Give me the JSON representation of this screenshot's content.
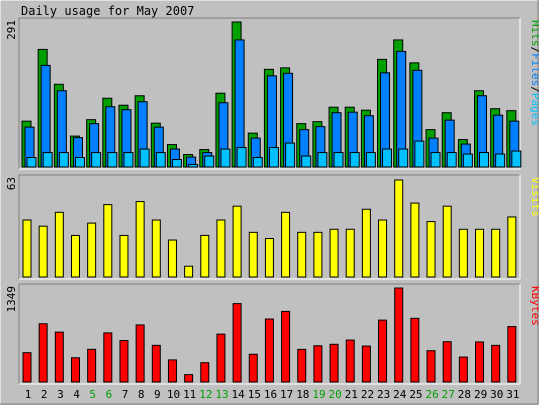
{
  "title": "Daily usage for May 2007",
  "colors": {
    "background": "#c0c0c0",
    "hits": "#00a000",
    "files": "#0080ff",
    "pages": "#00c0ff",
    "visits": "#ffff00",
    "kbytes": "#ff0000",
    "weekday_label": "#000000",
    "weekend_label": "#00a000"
  },
  "chart_data": [
    {
      "type": "bar",
      "ylabel": "291",
      "ylim": [
        0,
        291
      ],
      "legend": [
        {
          "name": "Pages",
          "color": "#00c0ff"
        },
        {
          "name": "Files",
          "color": "#0080ff"
        },
        {
          "name": "Hits",
          "color": "#00a000"
        }
      ],
      "categories": [
        "1",
        "2",
        "3",
        "4",
        "5",
        "6",
        "7",
        "8",
        "9",
        "10",
        "11",
        "12",
        "13",
        "14",
        "15",
        "16",
        "17",
        "18",
        "19",
        "20",
        "21",
        "22",
        "23",
        "24",
        "25",
        "26",
        "27",
        "28",
        "29",
        "30",
        "31"
      ],
      "weekend_days": [
        "5",
        "6",
        "12",
        "13",
        "19",
        "20",
        "26",
        "27"
      ],
      "series": [
        {
          "name": "Hits",
          "values": [
            92,
            236,
            166,
            62,
            95,
            138,
            124,
            143,
            88,
            45,
            25,
            35,
            148,
            291,
            68,
            196,
            199,
            87,
            91,
            120,
            120,
            114,
            216,
            255,
            209,
            75,
            109,
            55,
            153,
            117,
            113
          ]
        },
        {
          "name": "Files",
          "values": [
            80,
            204,
            153,
            59,
            87,
            121,
            115,
            131,
            80,
            36,
            20,
            29,
            129,
            255,
            58,
            183,
            188,
            75,
            81,
            109,
            110,
            103,
            189,
            232,
            194,
            58,
            94,
            46,
            143,
            104,
            92
          ]
        },
        {
          "name": "Pages",
          "values": [
            19,
            29,
            29,
            19,
            29,
            29,
            29,
            36,
            29,
            15,
            5,
            22,
            36,
            39,
            19,
            39,
            48,
            22,
            29,
            29,
            29,
            29,
            36,
            36,
            52,
            29,
            29,
            26,
            29,
            26,
            32
          ]
        }
      ]
    },
    {
      "type": "bar",
      "ylabel": "63",
      "ylim": [
        0,
        63
      ],
      "legend": [
        {
          "name": "Visits",
          "color": "#ffff00"
        }
      ],
      "categories": [
        "1",
        "2",
        "3",
        "4",
        "5",
        "6",
        "7",
        "8",
        "9",
        "10",
        "11",
        "12",
        "13",
        "14",
        "15",
        "16",
        "17",
        "18",
        "19",
        "20",
        "21",
        "22",
        "23",
        "24",
        "25",
        "26",
        "27",
        "28",
        "29",
        "30",
        "31"
      ],
      "series": [
        {
          "name": "Visits",
          "values": [
            37,
            33,
            42,
            27,
            35,
            47,
            27,
            49,
            37,
            24,
            7,
            27,
            37,
            46,
            29,
            25,
            42,
            29,
            29,
            31,
            31,
            44,
            37,
            63,
            48,
            36,
            46,
            31,
            31,
            31,
            39
          ]
        }
      ]
    },
    {
      "type": "bar",
      "ylabel": "1349",
      "ylim": [
        0,
        1349
      ],
      "legend": [
        {
          "name": "KBytes",
          "color": "#ff0000"
        }
      ],
      "categories": [
        "1",
        "2",
        "3",
        "4",
        "5",
        "6",
        "7",
        "8",
        "9",
        "10",
        "11",
        "12",
        "13",
        "14",
        "15",
        "16",
        "17",
        "18",
        "19",
        "20",
        "21",
        "22",
        "23",
        "24",
        "25",
        "26",
        "27",
        "28",
        "29",
        "30",
        "31"
      ],
      "series": [
        {
          "name": "KBytes",
          "values": [
            421,
            836,
            716,
            348,
            469,
            705,
            595,
            819,
            526,
            317,
            106,
            277,
            687,
            1125,
            398,
            904,
            1013,
            468,
            520,
            541,
            602,
            516,
            888,
            1349,
            914,
            449,
            578,
            358,
            575,
            526,
            795
          ]
        }
      ]
    }
  ]
}
